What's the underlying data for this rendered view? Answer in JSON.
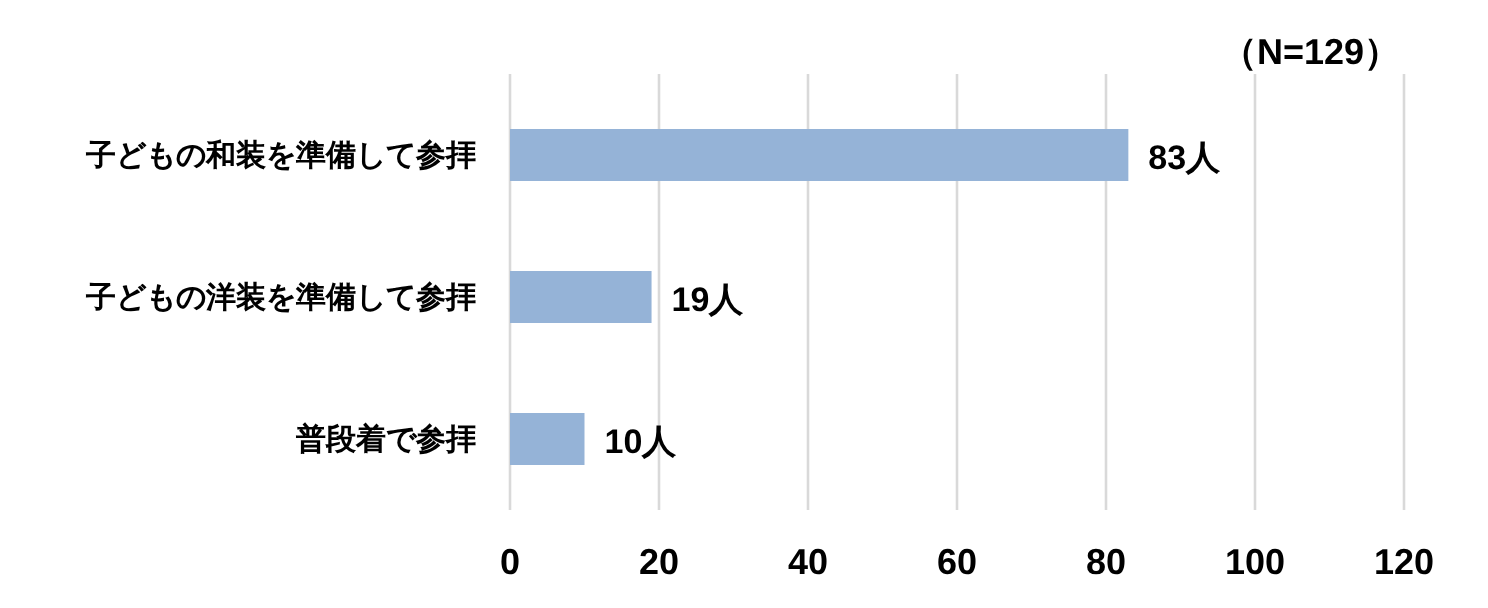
{
  "chart_data": {
    "type": "bar",
    "orientation": "horizontal",
    "categories": [
      "子どもの和装を準備して参拝",
      "子どもの洋装を準備して参拝",
      "普段着で参拝"
    ],
    "values": [
      83,
      19,
      10
    ],
    "value_labels": [
      "83人",
      "19人",
      "10人"
    ],
    "color": "#95b3d7",
    "xlim": [
      0,
      120
    ],
    "xticks": [
      0,
      20,
      40,
      60,
      80,
      100,
      120
    ],
    "grid": "x",
    "annotations": [
      "（N=129）"
    ]
  }
}
